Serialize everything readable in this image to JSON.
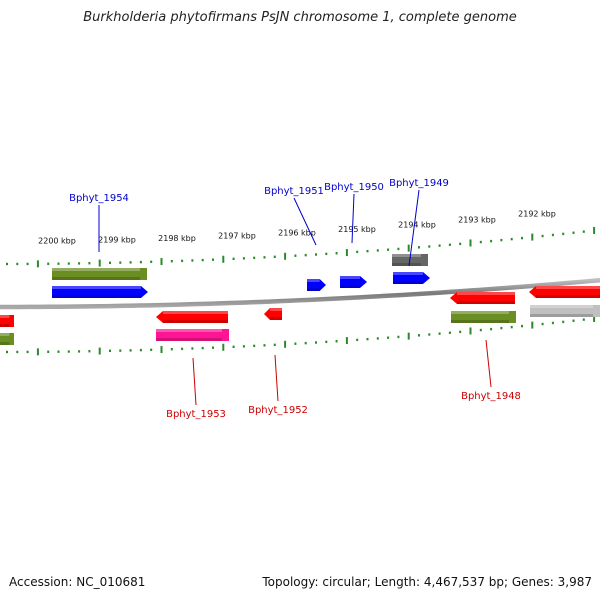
{
  "title": "Burkholderia phytofirmans PsJN chromosome 1, complete genome",
  "footer": {
    "accession": "Accession: NC_010681",
    "topology": "Topology: circular; Length: 4,467,537 bp; Genes: 3,987"
  },
  "colors": {
    "backbone": "#888888",
    "tick": "#2a8a2a",
    "label_upper": "#0000cc",
    "label_lower": "#cc0000",
    "olive": "#6b8e23",
    "blue": "#0000ff",
    "red": "#ff0000",
    "magenta": "#ff1493",
    "gray": "#666666",
    "light_gray": "#c0c0c0"
  },
  "scale_labels": [
    {
      "text": "2200 kbp"
    },
    {
      "text": "2199 kbp"
    },
    {
      "text": "2198 kbp"
    },
    {
      "text": "2197 kbp"
    },
    {
      "text": "2196 kbp"
    },
    {
      "text": "2195 kbp"
    },
    {
      "text": "2194 kbp"
    },
    {
      "text": "2193 kbp"
    },
    {
      "text": "2192 kbp"
    }
  ],
  "gene_labels": [
    {
      "text": "Bphyt_1954",
      "strand": "upper"
    },
    {
      "text": "Bphyt_1951",
      "strand": "upper"
    },
    {
      "text": "Bphyt_1950",
      "strand": "upper"
    },
    {
      "text": "Bphyt_1949",
      "strand": "upper"
    },
    {
      "text": "Bphyt_1953",
      "strand": "lower"
    },
    {
      "text": "Bphyt_1952",
      "strand": "lower"
    },
    {
      "text": "Bphyt_1948",
      "strand": "lower"
    }
  ]
}
